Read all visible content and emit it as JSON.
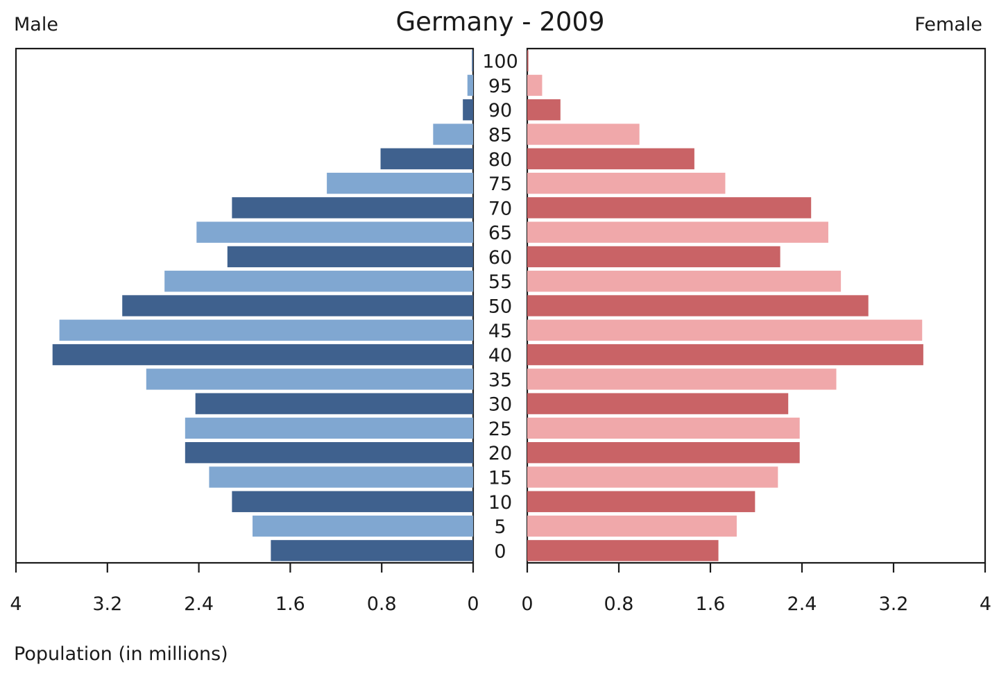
{
  "chart_data": {
    "type": "bar",
    "title": "Germany - 2009",
    "left_label": "Male",
    "right_label": "Female",
    "xlabel": "Population (in millions)",
    "categories": [
      "0",
      "5",
      "10",
      "15",
      "20",
      "25",
      "30",
      "35",
      "40",
      "45",
      "50",
      "55",
      "60",
      "65",
      "70",
      "75",
      "80",
      "85",
      "90",
      "95",
      "100"
    ],
    "series": [
      {
        "name": "Male",
        "values": [
          1.77,
          1.93,
          2.11,
          2.31,
          2.52,
          2.52,
          2.43,
          2.86,
          3.68,
          3.62,
          3.07,
          2.7,
          2.15,
          2.42,
          2.11,
          1.28,
          0.81,
          0.35,
          0.09,
          0.05,
          0.01
        ],
        "colors": [
          "#3f618e",
          "#80a7d1"
        ]
      },
      {
        "name": "Female",
        "values": [
          1.67,
          1.83,
          1.99,
          2.19,
          2.38,
          2.38,
          2.28,
          2.7,
          3.46,
          3.45,
          2.98,
          2.74,
          2.21,
          2.63,
          2.48,
          1.73,
          1.46,
          0.98,
          0.29,
          0.13,
          0.01
        ],
        "colors": [
          "#c96366",
          "#f0a8aa"
        ]
      }
    ],
    "xlim": [
      0,
      4
    ],
    "xticks_left": [
      "4",
      "3.2",
      "2.4",
      "1.6",
      "0.8",
      "0"
    ],
    "xticks_right": [
      "0",
      "0.8",
      "1.6",
      "2.4",
      "3.2",
      "4"
    ],
    "grid": false,
    "legend": "none"
  }
}
